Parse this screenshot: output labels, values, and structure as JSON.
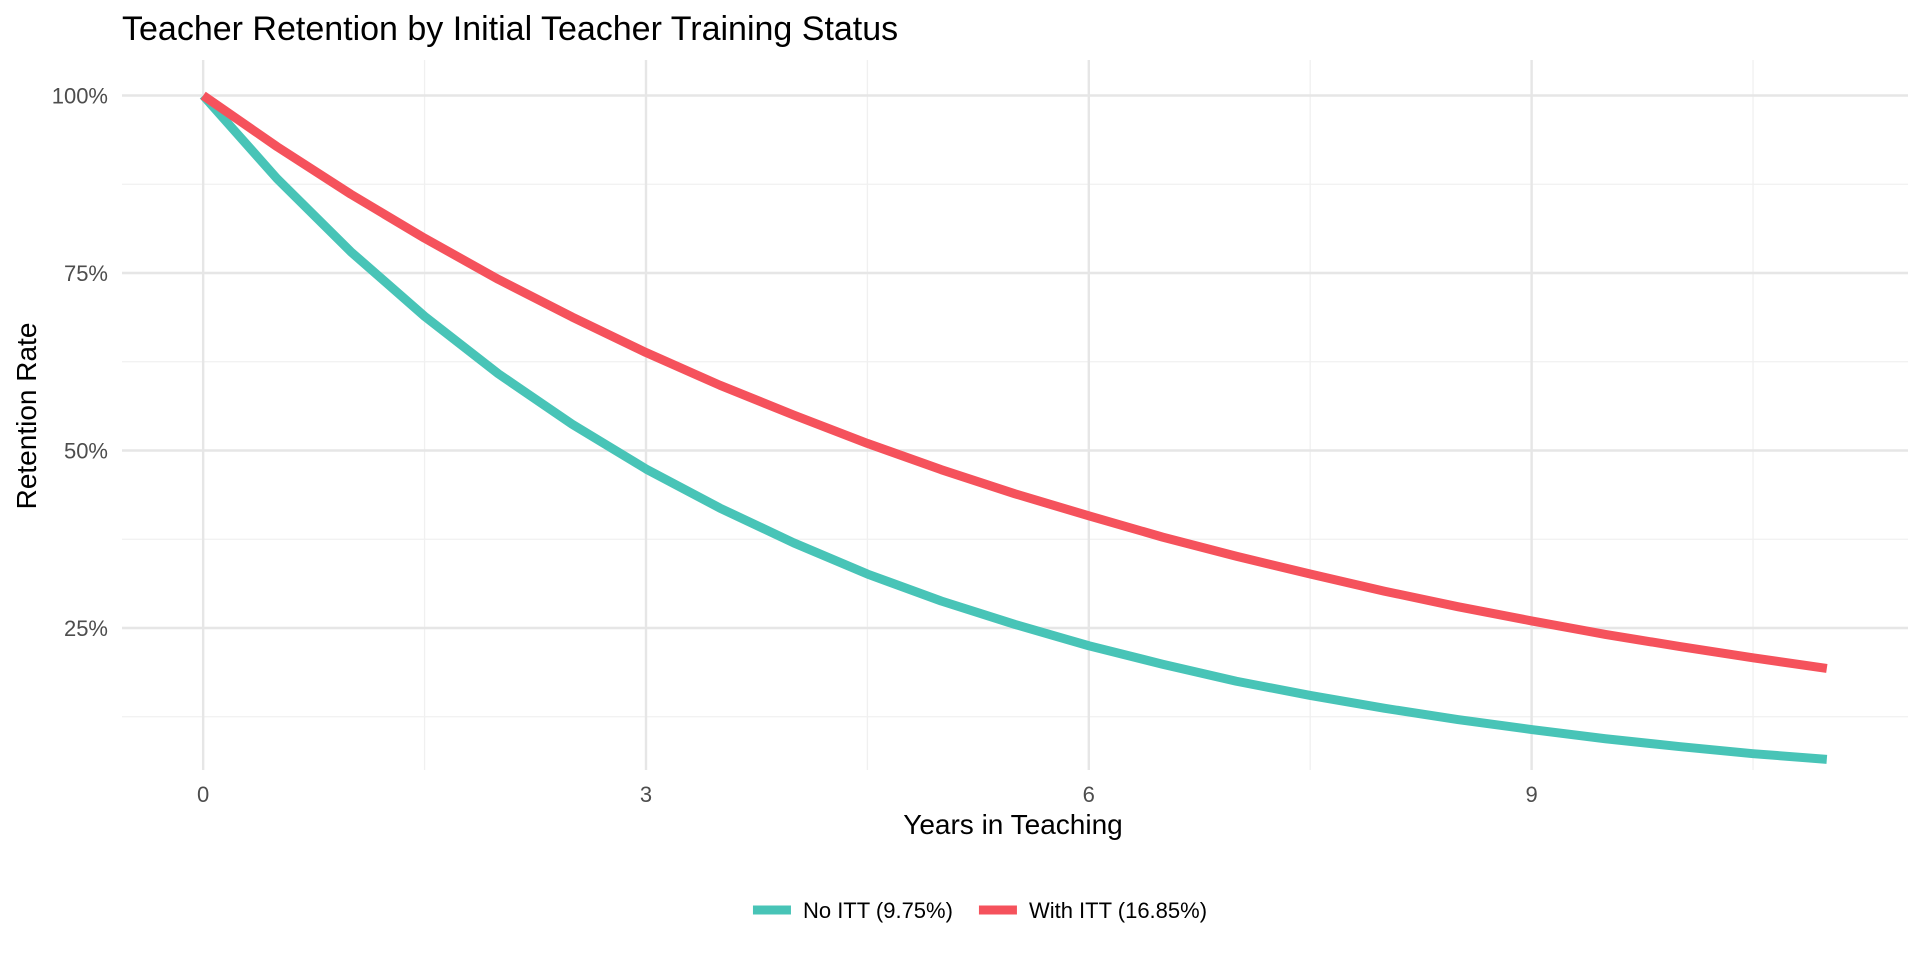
{
  "chart_data": {
    "type": "line",
    "title": "Teacher Retention by Initial Teacher Training Status",
    "xlabel": "Years in Teaching",
    "ylabel": "Retention Rate",
    "xlim": [
      -0.55,
      11.55
    ],
    "ylim": [
      0.05,
      1.05
    ],
    "x_ticks": [
      0,
      3,
      6,
      9
    ],
    "x_minor_ticks": [
      1.5,
      4.5,
      7.5,
      10.5
    ],
    "y_ticks": [
      0.25,
      0.5,
      0.75,
      1.0
    ],
    "y_tick_labels": [
      "25%",
      "50%",
      "75%",
      "100%"
    ],
    "y_minor_ticks": [
      0.125,
      0.375,
      0.625,
      0.875
    ],
    "grid": true,
    "legend_position": "bottom",
    "series": [
      {
        "name": "No ITT (9.75%)",
        "color": "#48c4b7",
        "x": [
          0,
          0.5,
          1,
          1.5,
          2,
          2.5,
          3,
          3.5,
          4,
          4.5,
          5,
          5.5,
          6,
          6.5,
          7,
          7.5,
          8,
          8.5,
          9,
          9.5,
          10,
          10.5,
          11
        ],
        "values": [
          1.0,
          0.883,
          0.78,
          0.689,
          0.608,
          0.537,
          0.474,
          0.419,
          0.37,
          0.326,
          0.288,
          0.255,
          0.225,
          0.199,
          0.175,
          0.155,
          0.137,
          0.121,
          0.107,
          0.094,
          0.083,
          0.073,
          0.065
        ]
      },
      {
        "name": "With ITT (16.85%)",
        "color": "#f5525c",
        "x": [
          0,
          0.5,
          1,
          1.5,
          2,
          2.5,
          3,
          3.5,
          4,
          4.5,
          5,
          5.5,
          6,
          6.5,
          7,
          7.5,
          8,
          8.5,
          9,
          9.5,
          10,
          10.5,
          11
        ],
        "values": [
          1.0,
          0.928,
          0.861,
          0.799,
          0.741,
          0.688,
          0.638,
          0.592,
          0.55,
          0.51,
          0.473,
          0.439,
          0.408,
          0.378,
          0.351,
          0.326,
          0.302,
          0.28,
          0.26,
          0.241,
          0.224,
          0.208,
          0.193
        ]
      }
    ]
  }
}
